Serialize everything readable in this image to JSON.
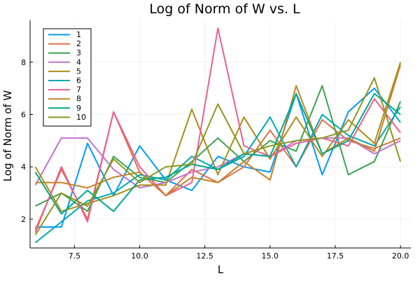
{
  "chart_data": {
    "type": "line",
    "title": "Log of Norm of W vs. L",
    "xlabel": "L",
    "ylabel": "Log of Norm of W",
    "xlim": [
      5.8,
      20.4
    ],
    "ylim": [
      0.9,
      9.6
    ],
    "xticks": [
      7.5,
      10.0,
      12.5,
      15.0,
      17.5,
      20.0
    ],
    "xtick_labels": [
      "7.5",
      "10.0",
      "12.5",
      "15.0",
      "17.5",
      "20.0"
    ],
    "yticks": [
      2,
      4,
      6,
      8
    ],
    "ytick_labels": [
      "2",
      "4",
      "6",
      "8"
    ],
    "grid": true,
    "legend_position": "top-left",
    "x": [
      6,
      7,
      8,
      9,
      10,
      11,
      12,
      13,
      14,
      15,
      16,
      17,
      18,
      19,
      20
    ],
    "series": [
      {
        "name": "1",
        "color": "#009AFA",
        "values": [
          1.7,
          1.7,
          4.9,
          2.9,
          4.8,
          3.5,
          3.1,
          4.4,
          4.0,
          3.8,
          6.8,
          3.7,
          6.1,
          7.0,
          5.7
        ]
      },
      {
        "name": "2",
        "color": "#E26F46",
        "values": [
          1.6,
          3.9,
          2.0,
          6.1,
          3.8,
          2.9,
          3.9,
          3.4,
          4.0,
          5.4,
          4.0,
          5.8,
          5.0,
          4.7,
          5.1
        ]
      },
      {
        "name": "3",
        "color": "#3EA44E",
        "values": [
          2.5,
          3.0,
          2.3,
          4.4,
          3.6,
          3.4,
          4.2,
          5.1,
          4.2,
          5.0,
          4.6,
          7.1,
          3.7,
          4.2,
          6.5
        ]
      },
      {
        "name": "4",
        "color": "#C371D2",
        "values": [
          3.3,
          5.1,
          5.1,
          3.9,
          3.2,
          3.4,
          3.8,
          4.0,
          4.5,
          4.4,
          5.0,
          5.1,
          5.1,
          4.5,
          5.0
        ]
      },
      {
        "name": "5",
        "color": "#AC8E18",
        "values": [
          4.0,
          2.3,
          2.6,
          2.9,
          3.3,
          3.3,
          6.2,
          3.7,
          5.9,
          4.3,
          5.9,
          4.4,
          5.8,
          4.9,
          8.0
        ]
      },
      {
        "name": "6",
        "color": "#00A9AD",
        "values": [
          1.1,
          1.9,
          2.7,
          3.0,
          3.7,
          3.5,
          4.4,
          3.9,
          4.4,
          5.9,
          4.0,
          6.0,
          5.2,
          4.8,
          6.3
        ]
      },
      {
        "name": "7",
        "color": "#ED5E93",
        "values": [
          1.5,
          4.0,
          1.9,
          6.1,
          4.0,
          2.9,
          3.4,
          9.3,
          4.8,
          4.4,
          4.9,
          5.1,
          4.8,
          6.6,
          5.3
        ]
      },
      {
        "name": "8",
        "color": "#C68225",
        "values": [
          3.4,
          3.4,
          3.2,
          3.6,
          3.8,
          2.9,
          3.6,
          3.4,
          4.2,
          3.5,
          7.1,
          4.5,
          5.1,
          4.6,
          7.9
        ]
      },
      {
        "name": "9",
        "color": "#00A98D",
        "values": [
          3.8,
          2.2,
          3.1,
          2.3,
          3.5,
          3.6,
          4.1,
          3.9,
          4.5,
          4.4,
          6.8,
          4.5,
          5.0,
          6.8,
          6.0
        ]
      },
      {
        "name": "10",
        "color": "#8E971D",
        "values": [
          1.4,
          3.0,
          2.5,
          4.3,
          3.4,
          4.0,
          4.1,
          6.4,
          4.5,
          4.8,
          5.0,
          5.1,
          5.4,
          7.4,
          4.2
        ]
      }
    ]
  }
}
